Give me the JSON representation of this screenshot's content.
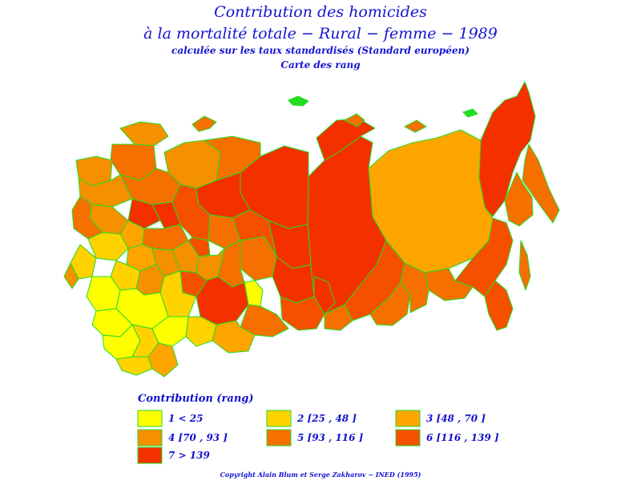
{
  "title": {
    "line1": "Contribution des homicides",
    "line2": "à la mortalité totale − Rural − femme − 1989",
    "line3": "calculée sur les taux standardisés (Standard européen)",
    "line4": "Carte des rang"
  },
  "legend": {
    "title": "Contribution (rang)",
    "items": [
      {
        "label": "1  <  25",
        "color": "#ffff00"
      },
      {
        "label": "2 [25 , 48 ]",
        "color": "#ffd200"
      },
      {
        "label": "3 [48 , 70 ]",
        "color": "#ffa500"
      },
      {
        "label": "4 [70 , 93 ]",
        "color": "#f59000"
      },
      {
        "label": "5 [93 , 116 ]",
        "color": "#f57000"
      },
      {
        "label": "6 [116 , 139 ]",
        "color": "#f55000"
      },
      {
        "label": "7  >  139",
        "color": "#f53000"
      }
    ]
  },
  "colors": {
    "border": "#22dd22",
    "text": "#1414d2"
  },
  "copyright": "Copyright Alain Blum et Serge Zakharov  −  INED (1995)"
}
